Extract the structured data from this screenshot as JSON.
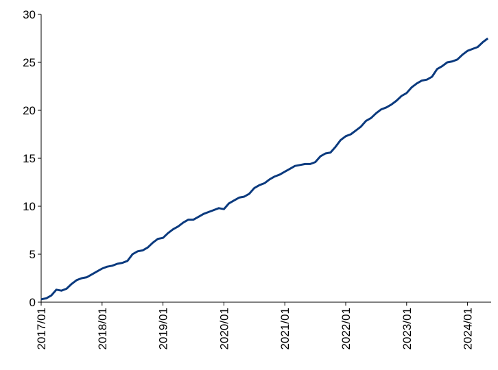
{
  "chart_data": {
    "type": "line",
    "x": [
      "2017/01",
      "2017/02",
      "2017/03",
      "2017/04",
      "2017/05",
      "2017/06",
      "2017/07",
      "2017/08",
      "2017/09",
      "2017/10",
      "2017/11",
      "2017/12",
      "2018/01",
      "2018/02",
      "2018/03",
      "2018/04",
      "2018/05",
      "2018/06",
      "2018/07",
      "2018/08",
      "2018/09",
      "2018/10",
      "2018/11",
      "2018/12",
      "2019/01",
      "2019/02",
      "2019/03",
      "2019/04",
      "2019/05",
      "2019/06",
      "2019/07",
      "2019/08",
      "2019/09",
      "2019/10",
      "2019/11",
      "2019/12",
      "2020/01",
      "2020/02",
      "2020/03",
      "2020/04",
      "2020/05",
      "2020/06",
      "2020/07",
      "2020/08",
      "2020/09",
      "2020/10",
      "2020/11",
      "2020/12",
      "2021/01",
      "2021/02",
      "2021/03",
      "2021/04",
      "2021/05",
      "2021/06",
      "2021/07",
      "2021/08",
      "2021/09",
      "2021/10",
      "2021/11",
      "2021/12",
      "2022/01",
      "2022/02",
      "2022/03",
      "2022/04",
      "2022/05",
      "2022/06",
      "2022/07",
      "2022/08",
      "2022/09",
      "2022/10",
      "2022/11",
      "2022/12",
      "2023/01",
      "2023/02",
      "2023/03",
      "2023/04",
      "2023/05",
      "2023/06",
      "2023/07",
      "2023/08",
      "2023/09",
      "2023/10",
      "2023/11",
      "2023/12",
      "2024/01",
      "2024/02",
      "2024/03",
      "2024/04",
      "2024/05"
    ],
    "series": [
      {
        "color": "#0b3a7e",
        "values": [
          0.3,
          0.4,
          0.7,
          1.3,
          1.2,
          1.4,
          1.9,
          2.3,
          2.5,
          2.6,
          2.9,
          3.2,
          3.5,
          3.7,
          3.8,
          4.0,
          4.1,
          4.3,
          5.0,
          5.3,
          5.4,
          5.7,
          6.2,
          6.6,
          6.7,
          7.2,
          7.6,
          7.9,
          8.3,
          8.6,
          8.6,
          8.9,
          9.2,
          9.4,
          9.6,
          9.8,
          9.7,
          10.3,
          10.6,
          10.9,
          11.0,
          11.3,
          11.9,
          12.2,
          12.4,
          12.8,
          13.1,
          13.3,
          13.6,
          13.9,
          14.2,
          14.3,
          14.4,
          14.4,
          14.6,
          15.2,
          15.5,
          15.6,
          16.2,
          16.9,
          17.3,
          17.5,
          17.9,
          18.3,
          18.9,
          19.2,
          19.7,
          20.1,
          20.3,
          20.6,
          21.0,
          21.5,
          21.8,
          22.4,
          22.8,
          23.1,
          23.2,
          23.5,
          24.3,
          24.6,
          25.0,
          25.1,
          25.3,
          25.8,
          26.2,
          26.4,
          26.6,
          27.1,
          27.5
        ]
      }
    ],
    "xticks_every": 12,
    "ylim": [
      0,
      30
    ],
    "yticks": [
      0,
      5,
      10,
      15,
      20,
      25,
      30
    ],
    "grid": false
  }
}
